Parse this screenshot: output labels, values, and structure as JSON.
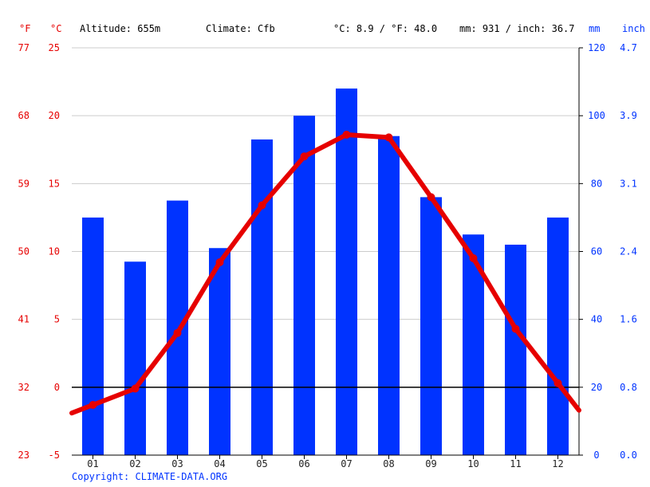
{
  "header": {
    "unit_f": "°F",
    "unit_c": "°C",
    "altitude": "Altitude: 655m",
    "climate": "Climate: Cfb",
    "temp_avg": "°C: 8.9 / °F: 48.0",
    "precip_total": "mm: 931 / inch: 36.7",
    "unit_mm": "mm",
    "unit_inch": "inch"
  },
  "copyright": "Copyright: CLIMATE-DATA.ORG",
  "colors": {
    "temperature": "#e60000",
    "precipitation": "#0033ff",
    "zero_line": "#000000",
    "grid": "#cccccc"
  },
  "chart_data": {
    "type": "bar",
    "categories": [
      "01",
      "02",
      "03",
      "04",
      "05",
      "06",
      "07",
      "08",
      "09",
      "10",
      "11",
      "12"
    ],
    "series": [
      {
        "type": "bar",
        "axis": "right",
        "values": [
          70,
          57,
          75,
          61,
          93,
          100,
          108,
          94,
          76,
          65,
          62,
          70
        ]
      },
      {
        "type": "line",
        "axis": "left",
        "values": [
          -1.3,
          -0.1,
          4.0,
          9.2,
          13.4,
          17.0,
          18.6,
          18.4,
          14.0,
          9.5,
          4.3,
          0.3
        ]
      }
    ],
    "y_left_c": {
      "ticks": [
        "-5",
        "0",
        "5",
        "10",
        "15",
        "20",
        "25"
      ],
      "ylim": [
        -5,
        25
      ]
    },
    "y_left_f": {
      "ticks": [
        "23",
        "32",
        "41",
        "50",
        "59",
        "68",
        "77"
      ]
    },
    "y_right_mm": {
      "ticks": [
        "0",
        "20",
        "40",
        "60",
        "80",
        "100",
        "120"
      ],
      "ylim": [
        0,
        120
      ]
    },
    "y_right_inch": {
      "ticks": [
        "0.0",
        "0.8",
        "1.6",
        "2.4",
        "3.1",
        "3.9",
        "4.7"
      ]
    },
    "grid": true
  }
}
